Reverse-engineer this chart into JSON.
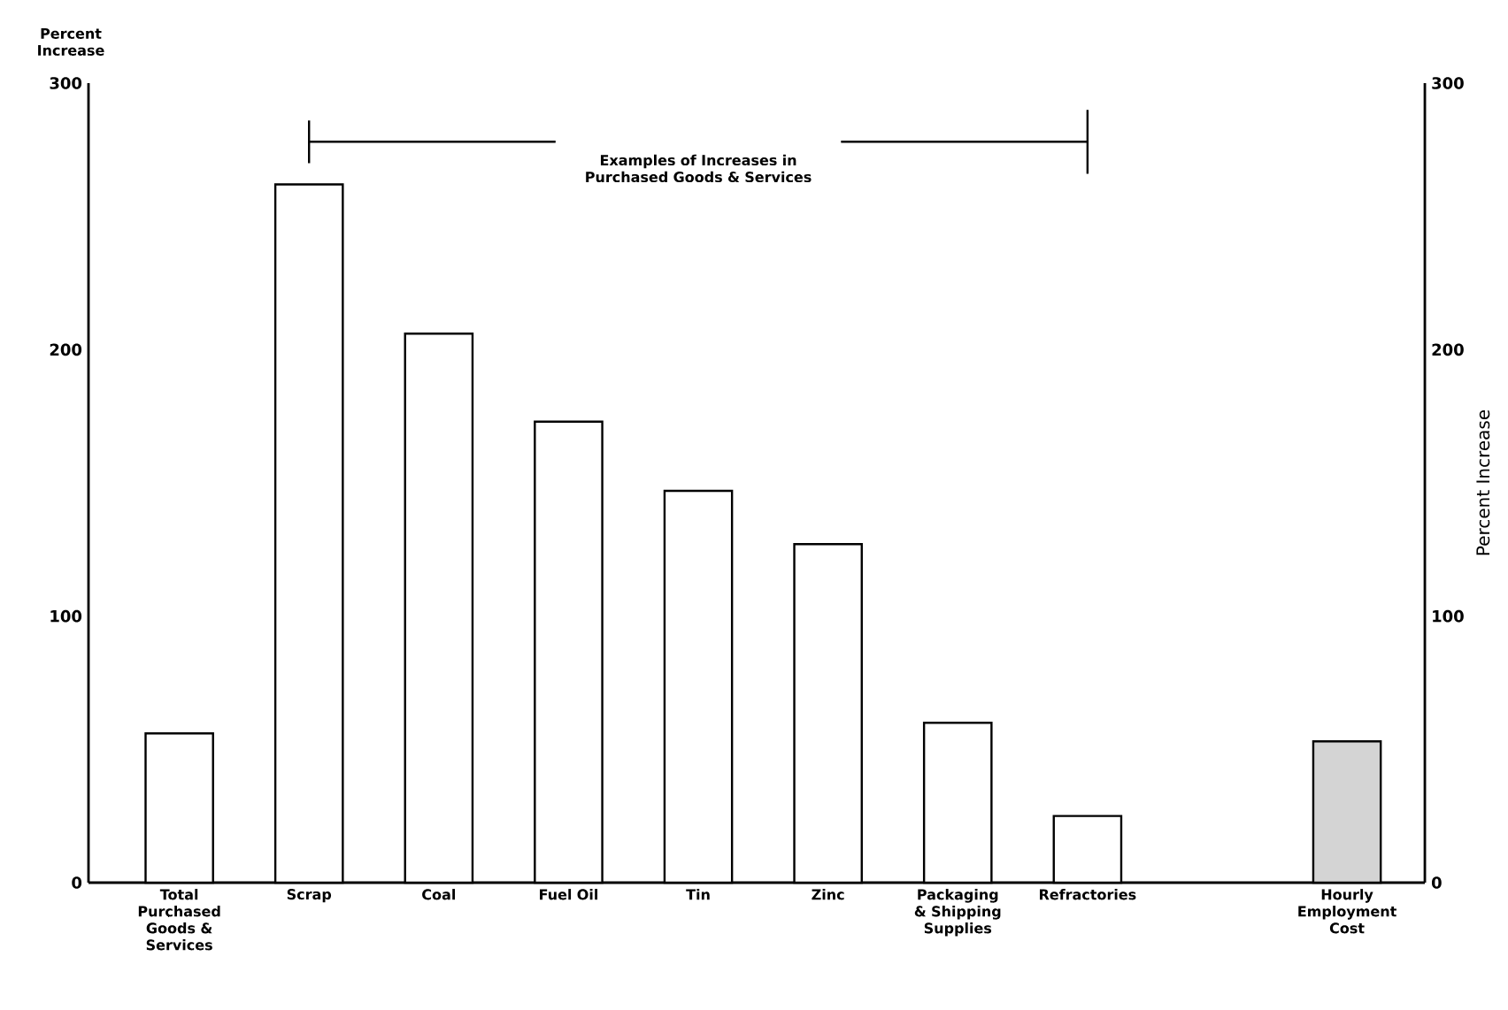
{
  "chart_data": {
    "type": "bar",
    "ylabel": "Percent Increase",
    "y2label": "Percent Increase",
    "categories": [
      "Total Purchased Goods & Services",
      "Scrap",
      "Coal",
      "Fuel Oil",
      "Tin",
      "Zinc",
      "Packaging & Shipping Supplies",
      "Refractories",
      null,
      "Hourly Employment Cost"
    ],
    "values": [
      56,
      262,
      206,
      173,
      147,
      127,
      60,
      25,
      null,
      53
    ],
    "colors": [
      "#ffffff",
      "#ffffff",
      "#ffffff",
      "#ffffff",
      "#ffffff",
      "#ffffff",
      "#ffffff",
      "#ffffff",
      "#ffffff",
      "#d4d4d4"
    ],
    "ylim": [
      0,
      300
    ],
    "yticks": [
      0,
      100,
      200,
      300
    ],
    "y2lim": [
      0,
      300
    ],
    "y2ticks": [
      0,
      100,
      200,
      300
    ],
    "annotations": [
      "Examples of Increases in Purchased Goods & Services"
    ]
  }
}
